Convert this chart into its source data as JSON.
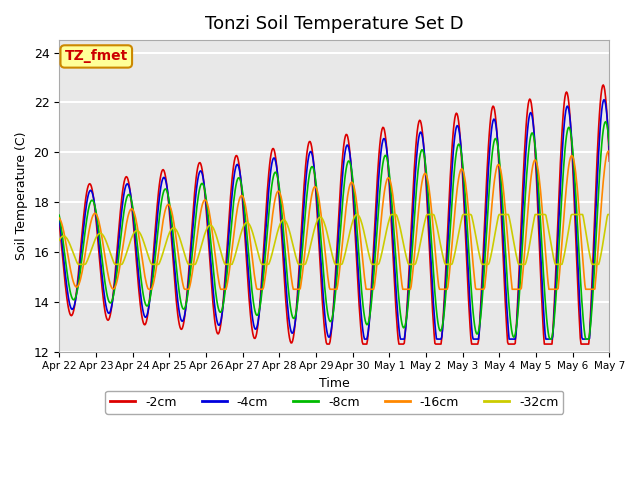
{
  "title": "Tonzi Soil Temperature Set D",
  "xlabel": "Time",
  "ylabel": "Soil Temperature (C)",
  "ylim": [
    12,
    24.5
  ],
  "xlim_start": 0,
  "xlim_end": 15,
  "bg_color": "#e8e8e8",
  "grid_color": "white",
  "annotation_text": "TZ_fmet",
  "annotation_bg": "#ffff99",
  "annotation_border": "#cc8800",
  "annotation_text_color": "#cc0000",
  "series_colors": {
    "-2cm": "#dd0000",
    "-4cm": "#0000dd",
    "-8cm": "#00bb00",
    "-16cm": "#ff8800",
    "-32cm": "#cccc00"
  },
  "legend_entries": [
    "-2cm",
    "-4cm",
    "-8cm",
    "-16cm",
    "-32cm"
  ],
  "xtick_labels": [
    "Apr 22",
    "Apr 23",
    "Apr 24",
    "Apr 25",
    "Apr 26",
    "Apr 27",
    "Apr 28",
    "Apr 29",
    "Apr 30",
    "May 1",
    "May 2",
    "May 3",
    "May 4",
    "May 5",
    "May 6",
    "May 7"
  ],
  "ytick_labels": [
    "12",
    "14",
    "16",
    "18",
    "20",
    "22",
    "24"
  ],
  "ytick_values": [
    12,
    14,
    16,
    18,
    20,
    22,
    24
  ]
}
